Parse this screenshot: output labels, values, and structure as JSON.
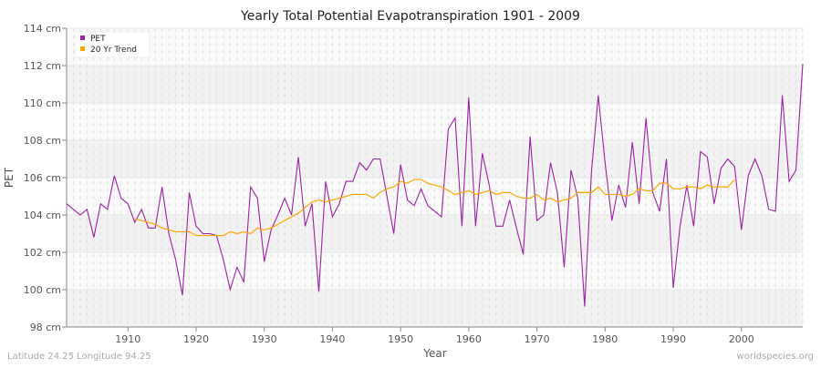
{
  "chart_data": {
    "type": "line",
    "title": "Yearly Total Potential Evapotranspiration 1901 - 2009",
    "xlabel": "Year",
    "ylabel": "PET",
    "xlim": [
      1901,
      2009
    ],
    "ylim": [
      98,
      114
    ],
    "xticks": [
      1910,
      1920,
      1930,
      1940,
      1950,
      1960,
      1970,
      1980,
      1990,
      2000
    ],
    "yticks": [
      98,
      100,
      102,
      104,
      106,
      108,
      110,
      112,
      114
    ],
    "ytick_labels": [
      "98 cm",
      "100 cm",
      "102 cm",
      "104 cm",
      "106 cm",
      "108 cm",
      "110 cm",
      "112 cm",
      "114 cm"
    ],
    "grid": true,
    "legend_placement": "top-left",
    "series": [
      {
        "name": "PET",
        "color": "#a020a8",
        "start_year": 1901,
        "values": [
          104.6,
          104.3,
          104.0,
          104.3,
          102.8,
          104.6,
          104.3,
          106.1,
          104.9,
          104.6,
          103.6,
          104.3,
          103.3,
          103.3,
          105.5,
          103.0,
          101.6,
          99.7,
          105.2,
          103.4,
          103.0,
          103.0,
          102.9,
          101.6,
          100.0,
          101.2,
          100.4,
          105.5,
          104.9,
          101.5,
          103.2,
          104.0,
          104.9,
          104.0,
          107.1,
          103.4,
          104.6,
          99.9,
          105.8,
          103.9,
          104.6,
          105.8,
          105.8,
          106.8,
          106.4,
          107.0,
          107.0,
          105.0,
          103.0,
          106.7,
          104.8,
          104.5,
          105.4,
          104.5,
          104.2,
          103.9,
          108.6,
          109.2,
          103.4,
          110.3,
          103.4,
          107.3,
          105.6,
          103.4,
          103.4,
          104.8,
          103.3,
          101.9,
          108.2,
          103.7,
          104.0,
          106.8,
          105.2,
          101.2,
          106.4,
          104.9,
          99.1,
          106.3,
          110.4,
          106.8,
          103.7,
          105.6,
          104.4,
          107.9,
          104.6,
          109.2,
          105.2,
          104.2,
          107.0,
          100.1,
          103.4,
          105.6,
          103.4,
          107.4,
          107.1,
          104.6,
          106.5,
          107.0,
          106.6,
          103.2,
          106.1,
          107.0,
          106.1,
          104.3,
          104.2,
          110.4,
          105.8,
          106.4,
          112.1
        ]
      },
      {
        "name": "20 Yr Trend",
        "color": "#ffa500",
        "start_year": 1911,
        "values": [
          103.8,
          103.7,
          103.6,
          103.5,
          103.3,
          103.2,
          103.1,
          103.1,
          103.1,
          102.9,
          102.9,
          102.9,
          102.9,
          102.9,
          103.1,
          103.0,
          103.1,
          103.0,
          103.3,
          103.2,
          103.3,
          103.5,
          103.7,
          103.9,
          104.1,
          104.4,
          104.7,
          104.8,
          104.7,
          104.8,
          104.9,
          105.0,
          105.1,
          105.1,
          105.1,
          104.9,
          105.2,
          105.4,
          105.5,
          105.8,
          105.7,
          105.9,
          105.9,
          105.7,
          105.6,
          105.5,
          105.3,
          105.1,
          105.2,
          105.3,
          105.1,
          105.2,
          105.3,
          105.1,
          105.2,
          105.2,
          105.0,
          104.9,
          104.9,
          105.1,
          104.8,
          104.9,
          104.7,
          104.8,
          104.9,
          105.2,
          105.2,
          105.2,
          105.5,
          105.1,
          105.1,
          105.1,
          105.0,
          105.1,
          105.4,
          105.3,
          105.3,
          105.7,
          105.7,
          105.4,
          105.4,
          105.5,
          105.5,
          105.4,
          105.6,
          105.5,
          105.5,
          105.5,
          105.9
        ]
      }
    ]
  },
  "footer": {
    "left": "Latitude 24.25 Longitude 94.25",
    "right": "worldspecies.org"
  }
}
